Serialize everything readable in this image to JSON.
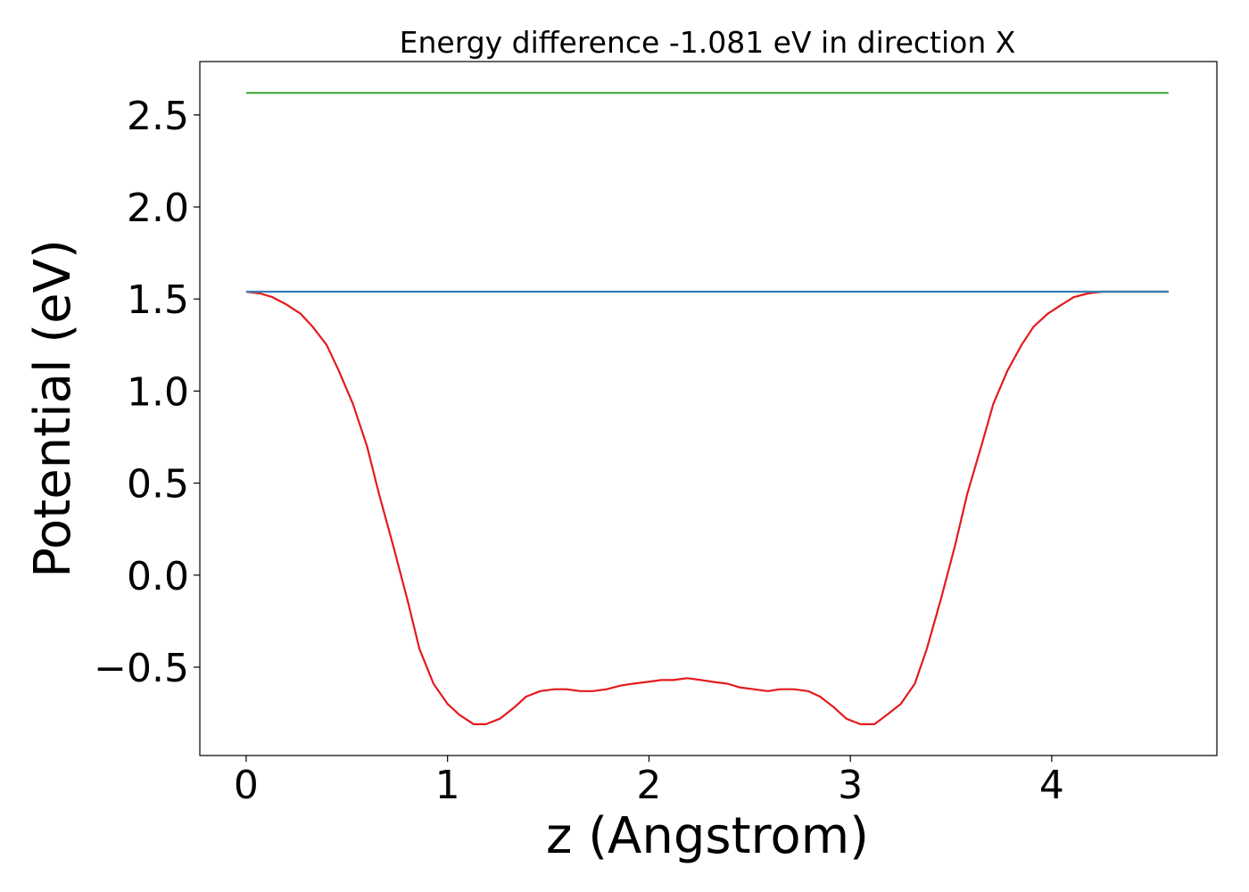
{
  "chart_data": {
    "type": "line",
    "title": "Energy difference -1.081 eV in direction X",
    "xlabel": "z (Angstrom)",
    "ylabel": "Potential (eV)",
    "xlim": [
      -0.23,
      4.82
    ],
    "ylim": [
      -0.98,
      2.79
    ],
    "x_ticks": [
      0,
      1,
      2,
      3,
      4
    ],
    "x_tick_labels": [
      "0",
      "1",
      "2",
      "3",
      "4"
    ],
    "y_ticks": [
      -0.5,
      0.0,
      0.5,
      1.0,
      1.5,
      2.0,
      2.5
    ],
    "y_tick_labels": [
      "−0.5",
      "0.0",
      "0.5",
      "1.0",
      "1.5",
      "2.0",
      "2.5"
    ],
    "grid": false,
    "series": [
      {
        "color": "#e41a1c",
        "x": [
          0,
          0.07,
          0.13,
          0.2,
          0.27,
          0.33,
          0.4,
          0.46,
          0.53,
          0.6,
          0.66,
          0.73,
          0.8,
          0.86,
          0.93,
          1.0,
          1.06,
          1.13,
          1.19,
          1.26,
          1.33,
          1.39,
          1.46,
          1.53,
          1.59,
          1.66,
          1.72,
          1.79,
          1.86,
          1.92,
          1.99,
          2.06,
          2.12,
          2.19,
          2.26,
          2.32,
          2.39,
          2.45,
          2.52,
          2.59,
          2.65,
          2.72,
          2.79,
          2.85,
          2.92,
          2.98,
          3.05,
          3.12,
          3.18,
          3.25,
          3.32,
          3.38,
          3.45,
          3.52,
          3.58,
          3.65,
          3.71,
          3.78,
          3.85,
          3.91,
          3.98,
          4.05,
          4.11,
          4.18,
          4.25,
          4.31,
          4.38,
          4.44,
          4.51,
          4.58
        ],
        "y": [
          1.54,
          1.53,
          1.51,
          1.47,
          1.42,
          1.35,
          1.25,
          1.11,
          0.93,
          0.7,
          0.44,
          0.16,
          -0.13,
          -0.4,
          -0.59,
          -0.7,
          -0.76,
          -0.81,
          -0.81,
          -0.78,
          -0.72,
          -0.66,
          -0.63,
          -0.62,
          -0.62,
          -0.63,
          -0.63,
          -0.62,
          -0.6,
          -0.59,
          -0.58,
          -0.57,
          -0.57,
          -0.56,
          -0.57,
          -0.58,
          -0.59,
          -0.61,
          -0.62,
          -0.63,
          -0.62,
          -0.62,
          -0.63,
          -0.66,
          -0.72,
          -0.78,
          -0.81,
          -0.81,
          -0.76,
          -0.7,
          -0.59,
          -0.4,
          -0.13,
          0.16,
          0.44,
          0.7,
          0.93,
          1.11,
          1.25,
          1.35,
          1.42,
          1.47,
          1.51,
          1.53,
          1.54,
          1.54,
          1.54,
          1.54,
          1.54,
          1.54
        ]
      },
      {
        "color": "#377eb8",
        "x": [
          0,
          4.58
        ],
        "y": [
          1.54,
          1.54
        ]
      },
      {
        "color": "#4daf4a",
        "x": [
          0,
          4.58
        ],
        "y": [
          2.62,
          2.62
        ]
      }
    ]
  }
}
